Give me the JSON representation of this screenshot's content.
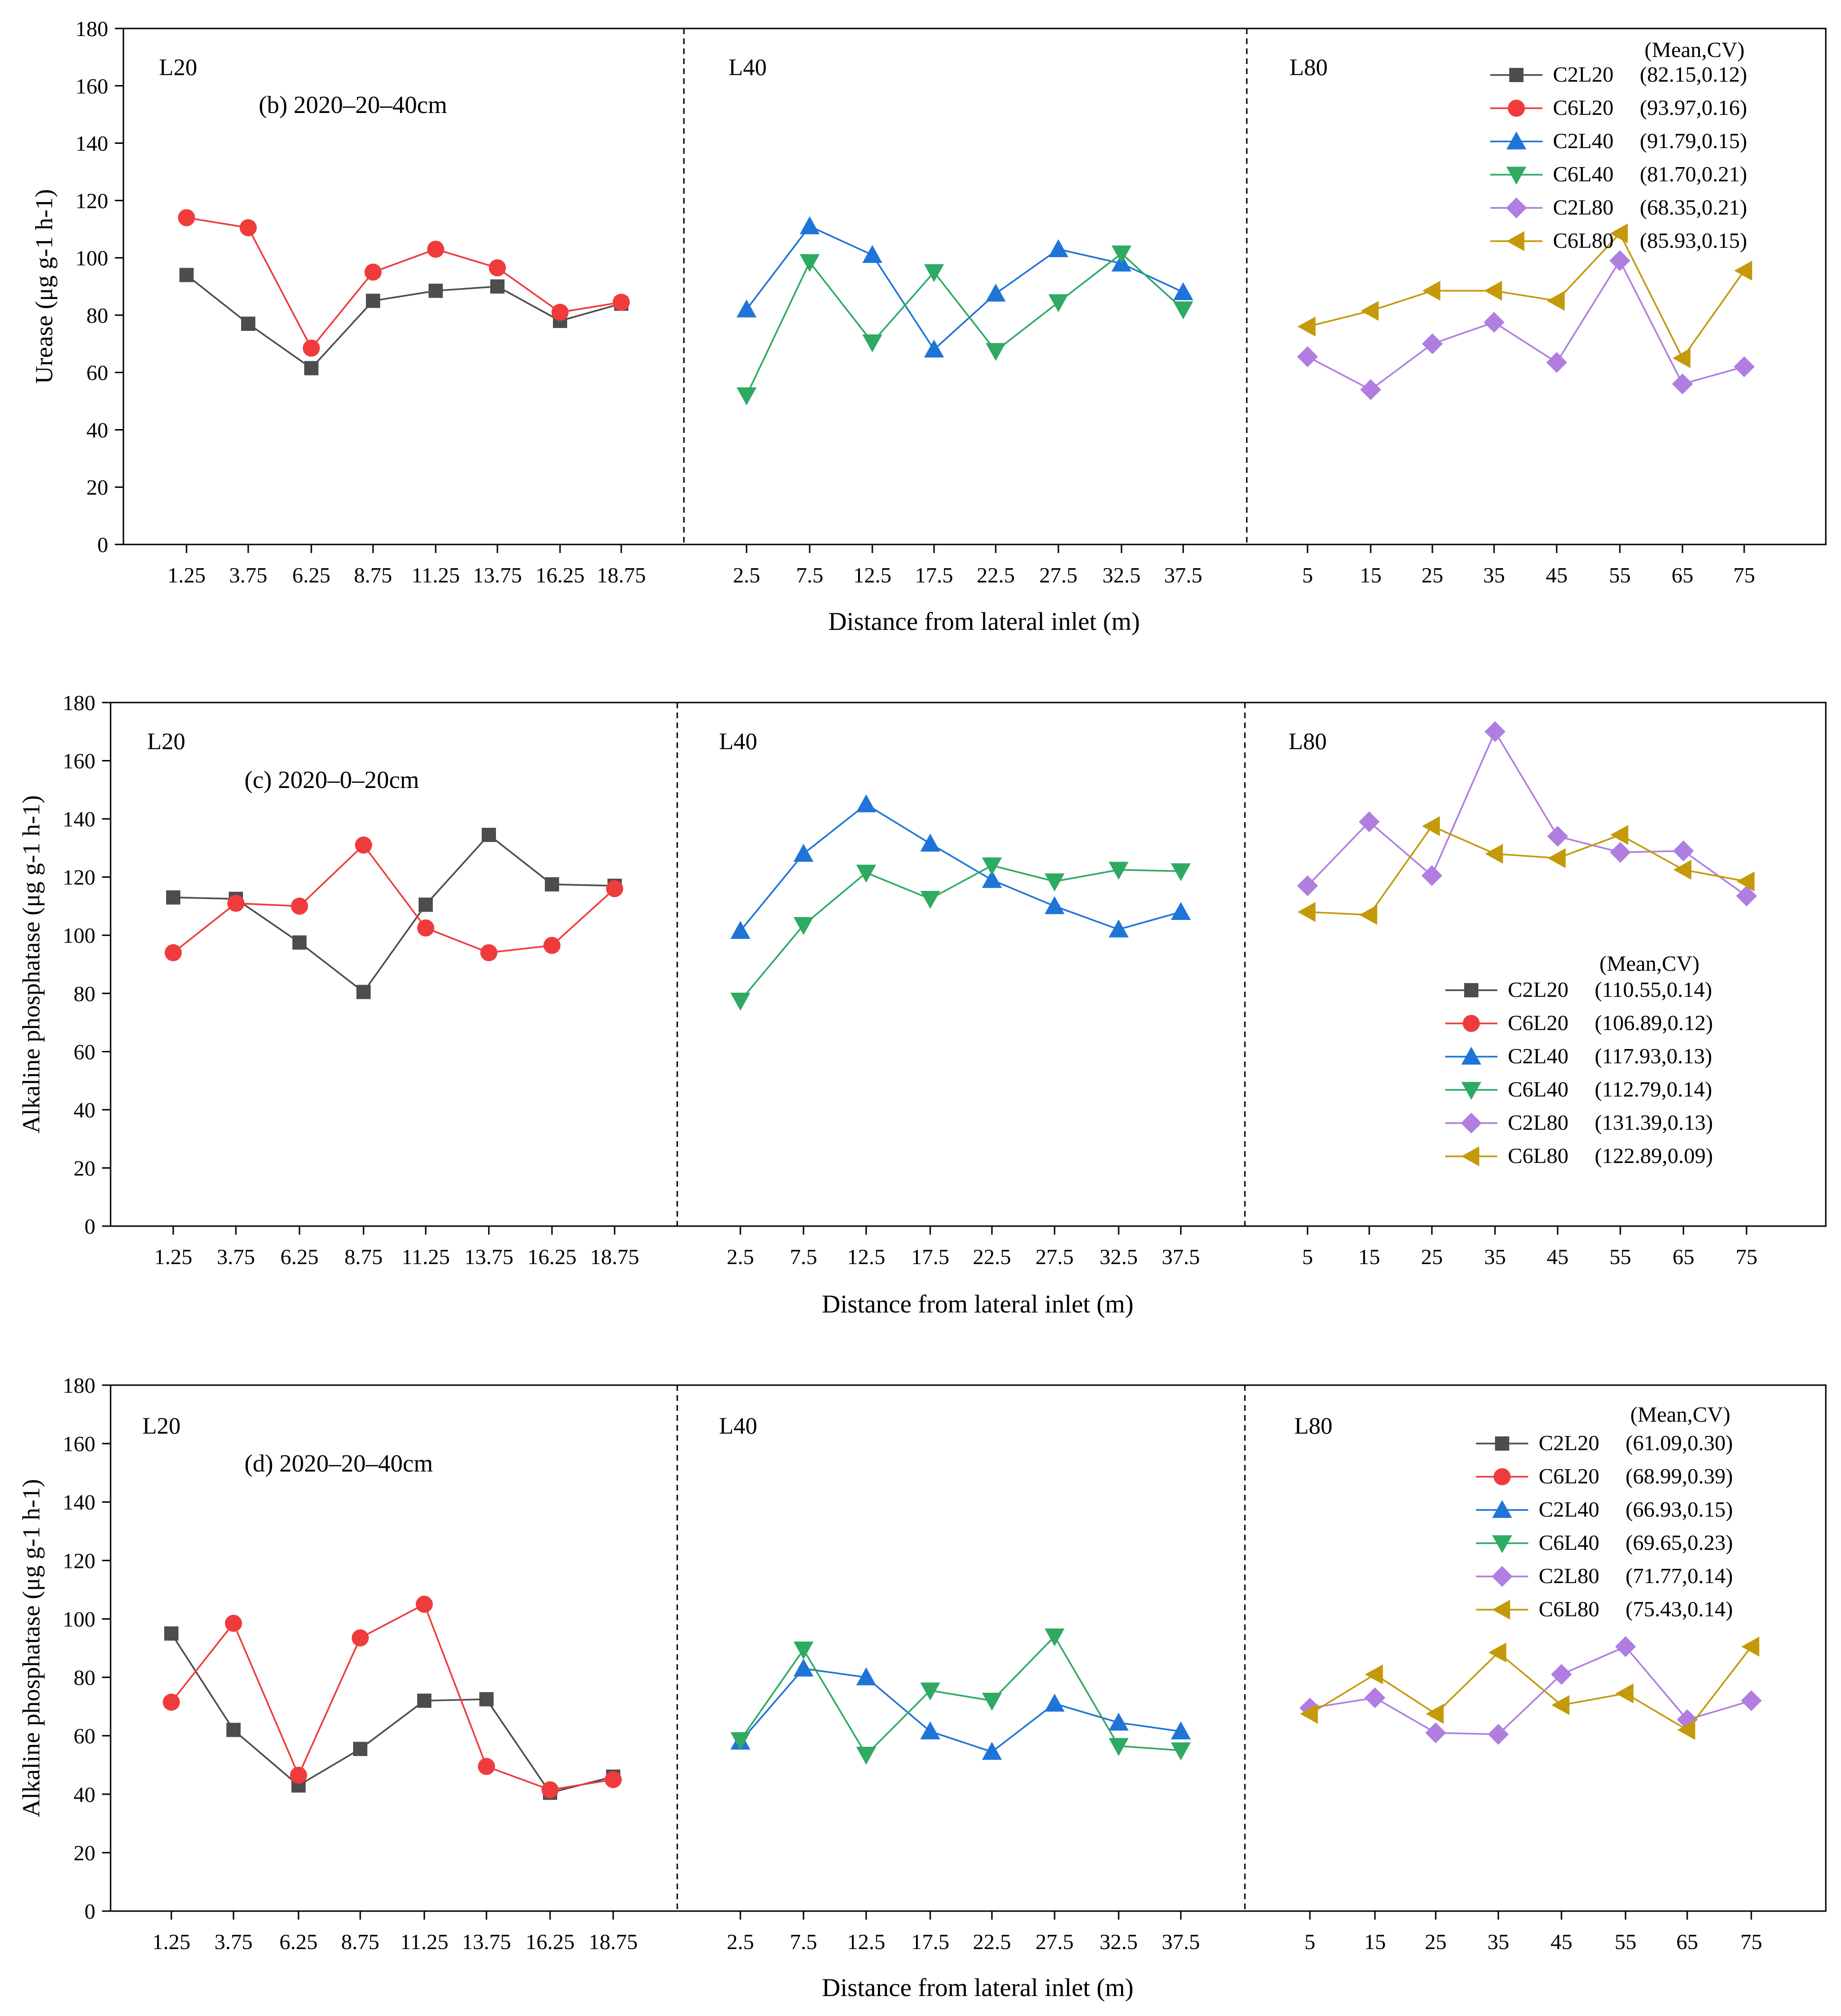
{
  "figure": {
    "x_axis_label": "Distance from lateral inlet (m)",
    "section_labels": [
      "L20",
      "L40",
      "L80"
    ],
    "section_ticks": [
      [
        "1.25",
        "3.75",
        "6.25",
        "8.75",
        "11.25",
        "13.75",
        "16.25",
        "18.75"
      ],
      [
        "2.5",
        "7.5",
        "12.5",
        "17.5",
        "22.5",
        "27.5",
        "32.5",
        "37.5"
      ],
      [
        "5",
        "15",
        "25",
        "35",
        "45",
        "55",
        "65",
        "75"
      ]
    ],
    "legend_header": "(Mean,CV)"
  },
  "series_styles": [
    {
      "name": "C2L20",
      "color": "#4d4d4d",
      "marker": "square",
      "section": 0
    },
    {
      "name": "C6L20",
      "color": "#ef3b3b",
      "marker": "circle",
      "section": 0
    },
    {
      "name": "C2L40",
      "color": "#1f74d8",
      "marker": "triangle-up",
      "section": 1
    },
    {
      "name": "C6L40",
      "color": "#2eaa63",
      "marker": "triangle-down",
      "section": 1
    },
    {
      "name": "C2L80",
      "color": "#b07ee0",
      "marker": "diamond",
      "section": 2
    },
    {
      "name": "C6L80",
      "color": "#c49a0a",
      "marker": "triangle-left",
      "section": 2
    }
  ],
  "chart_data": [
    {
      "type": "line",
      "panel_label": "(b) 2020–20–40cm",
      "ylabel": "Urease (μg g-1 h-1)",
      "ylim": [
        0,
        180
      ],
      "yticks": [
        0,
        20,
        40,
        60,
        80,
        100,
        120,
        140,
        160,
        180
      ],
      "legend_position": "top-right",
      "series": [
        {
          "name": "C2L20",
          "stats": "(82.15,0.12)",
          "values": [
            94,
            77,
            61.5,
            85,
            88.5,
            90,
            78,
            84
          ]
        },
        {
          "name": "C6L20",
          "stats": "(93.97,0.16)",
          "values": [
            114,
            110.5,
            68.5,
            95,
            103,
            96.5,
            81,
            84.5
          ]
        },
        {
          "name": "C2L40",
          "stats": "(91.79,0.15)",
          "values": [
            82,
            111,
            101,
            68,
            87.5,
            103,
            98,
            88
          ]
        },
        {
          "name": "C6L40",
          "stats": "(81.70,0.21)",
          "values": [
            52,
            98.5,
            70.5,
            95,
            67.5,
            84.5,
            101.5,
            82
          ]
        },
        {
          "name": "C2L80",
          "stats": "(68.35,0.21)",
          "values": [
            65.5,
            54,
            70,
            77.5,
            63.5,
            99,
            56,
            62
          ]
        },
        {
          "name": "C6L80",
          "stats": "(85.93,0.15)",
          "values": [
            76,
            81.5,
            88.5,
            88.5,
            85,
            108.5,
            65,
            95.5
          ]
        }
      ]
    },
    {
      "type": "line",
      "panel_label": "(c) 2020–0–20cm",
      "ylabel": "Alkaline phosphatase (μg g-1 h-1)",
      "ylim": [
        0,
        180
      ],
      "yticks": [
        0,
        20,
        40,
        60,
        80,
        100,
        120,
        140,
        160,
        180
      ],
      "legend_position": "bottom-right",
      "series": [
        {
          "name": "C2L20",
          "stats": "(110.55,0.14)",
          "values": [
            113,
            112.5,
            97.5,
            80.5,
            110.5,
            134.5,
            117.5,
            117
          ]
        },
        {
          "name": "C6L20",
          "stats": "(106.89,0.12)",
          "values": [
            94,
            111,
            110,
            131,
            102.5,
            94,
            96.5,
            116
          ]
        },
        {
          "name": "C2L40",
          "stats": "(117.93,0.13)",
          "values": [
            101.5,
            128,
            145,
            131.5,
            119,
            110,
            102,
            108
          ]
        },
        {
          "name": "C6L40",
          "stats": "(112.79,0.14)",
          "values": [
            77.5,
            103.5,
            121.5,
            112.5,
            124,
            118.5,
            122.5,
            122
          ]
        },
        {
          "name": "C2L80",
          "stats": "(131.39,0.13)",
          "values": [
            117,
            139,
            120.5,
            170,
            134,
            128.5,
            129,
            113.5
          ]
        },
        {
          "name": "C6L80",
          "stats": "(122.89,0.09)",
          "values": [
            108,
            107,
            137.5,
            128,
            126.5,
            134.5,
            122.5,
            118.5
          ]
        }
      ]
    },
    {
      "type": "line",
      "panel_label": "(d) 2020–20–40cm",
      "ylabel": "Alkaline phosphatase (μg g-1 h-1)",
      "ylim": [
        0,
        180
      ],
      "yticks": [
        0,
        20,
        40,
        60,
        80,
        100,
        120,
        140,
        160,
        180
      ],
      "legend_position": "top-right",
      "series": [
        {
          "name": "C2L20",
          "stats": "(61.09,0.30)",
          "values": [
            95,
            62,
            43,
            55.5,
            72,
            72.5,
            40.5,
            46
          ]
        },
        {
          "name": "C6L20",
          "stats": "(68.99,0.39)",
          "values": [
            71.5,
            98.5,
            46.5,
            93.5,
            105,
            49.5,
            41.5,
            45
          ]
        },
        {
          "name": "C2L40",
          "stats": "(66.93,0.15)",
          "values": [
            58,
            83,
            80,
            61.5,
            54.5,
            71,
            64.5,
            61.5
          ]
        },
        {
          "name": "C6L40",
          "stats": "(69.65,0.23)",
          "values": [
            58.5,
            89.5,
            53.5,
            75.5,
            72,
            94,
            56.5,
            55
          ]
        },
        {
          "name": "C2L80",
          "stats": "(71.77,0.14)",
          "values": [
            69.5,
            73,
            61,
            60.5,
            81,
            90.5,
            65.5,
            72
          ]
        },
        {
          "name": "C6L80",
          "stats": "(75.43,0.14)",
          "values": [
            67.5,
            81,
            67.5,
            88.5,
            70.5,
            74.5,
            62,
            90.5
          ]
        }
      ]
    }
  ]
}
